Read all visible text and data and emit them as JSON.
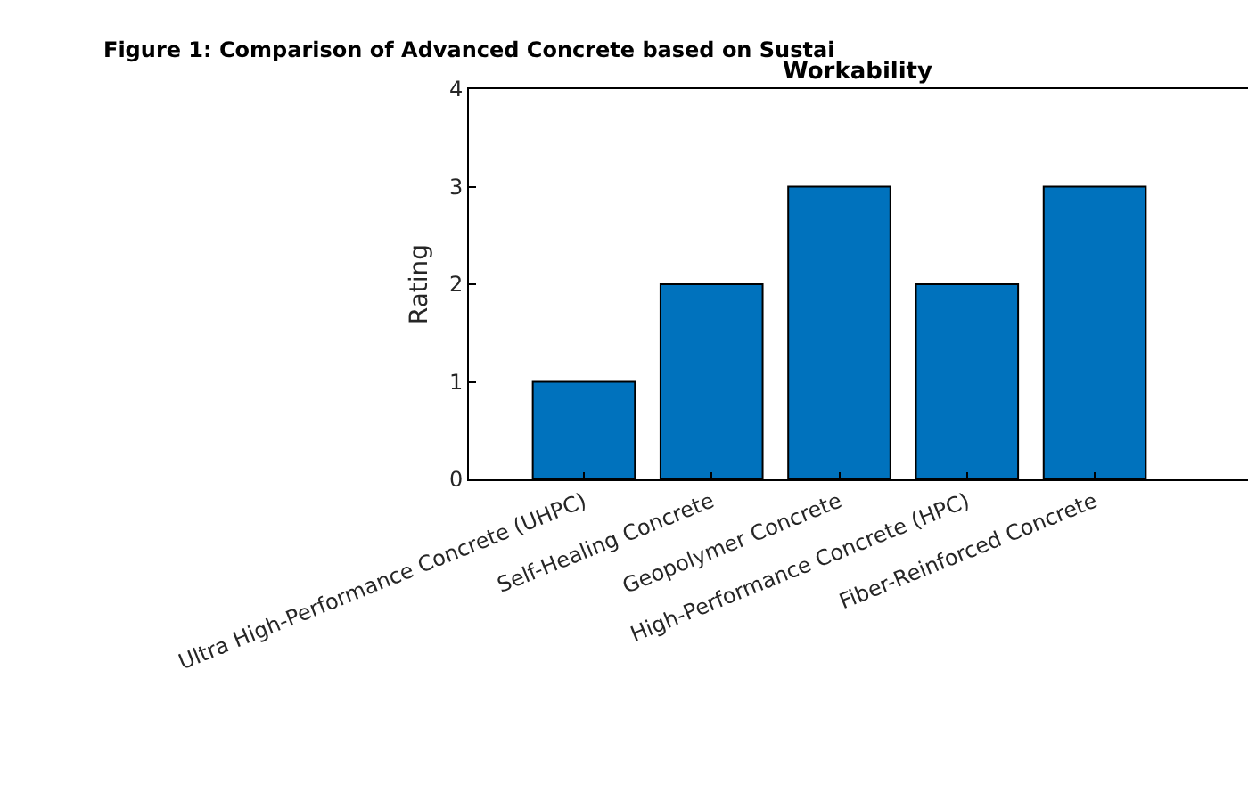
{
  "chart_data": {
    "type": "bar",
    "title": "Figure 1: Comparison of Advanced Concrete based on Sustai",
    "subtitle": "Workability",
    "ylabel": "Rating",
    "categories": [
      "Ultra High-Performance Concrete (UHPC)",
      "Self-Healing Concrete",
      "Geopolymer Concrete",
      "High-Performance Concrete (HPC)",
      "Fiber-Reinforced Concrete"
    ],
    "values": [
      1,
      2,
      3,
      2,
      3
    ],
    "color": "#0072bd",
    "ylim": [
      0,
      4
    ],
    "yticks": [
      0,
      1,
      2,
      3,
      4
    ]
  }
}
